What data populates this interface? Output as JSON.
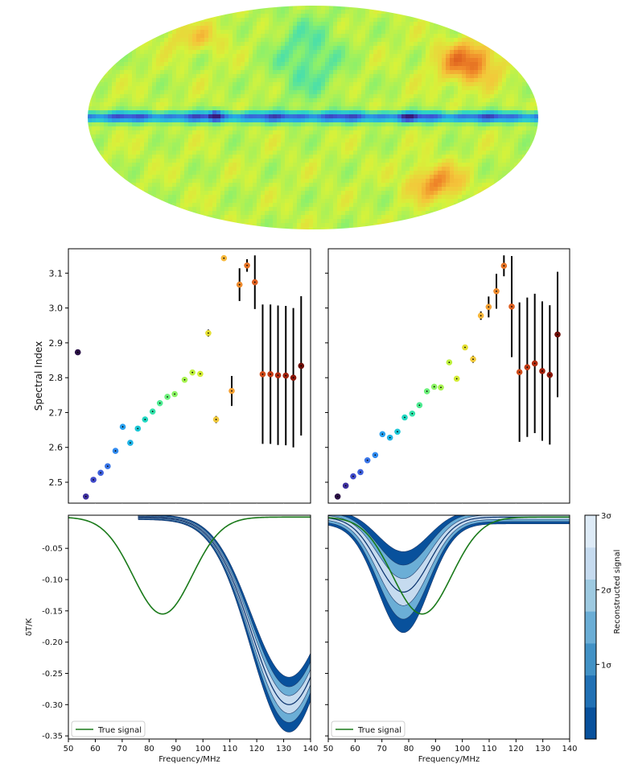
{
  "sky_map": {
    "colormap": [
      "#3a1a7a",
      "#3d55d6",
      "#27a7e6",
      "#2fd8c4",
      "#8df06a",
      "#d7f23a",
      "#f4c63a",
      "#f08a2a",
      "#d44a18",
      "#8a1a0a"
    ]
  },
  "chart_data": [
    {
      "type": "scatter",
      "panel": "spectral-index-left",
      "ylabel": "Spectral Index",
      "xlim": [
        50,
        140
      ],
      "ylim": [
        2.44,
        3.17
      ],
      "yticks": [
        "2.5",
        "2.6",
        "2.7",
        "2.8",
        "2.9",
        "3.0",
        "3.1"
      ],
      "points": [
        {
          "x": 53.5,
          "y": 2.873,
          "err": 0,
          "color": "#2b1247"
        },
        {
          "x": 56.5,
          "y": 2.459,
          "err": 0,
          "color": "#3d2f9e"
        },
        {
          "x": 59.3,
          "y": 2.507,
          "err": 0,
          "color": "#3f49c9"
        },
        {
          "x": 62.0,
          "y": 2.527,
          "err": 0,
          "color": "#3d5fdc"
        },
        {
          "x": 64.6,
          "y": 2.546,
          "err": 0,
          "color": "#3a76e8"
        },
        {
          "x": 67.5,
          "y": 2.59,
          "err": 0,
          "color": "#318bf0"
        },
        {
          "x": 70.2,
          "y": 2.659,
          "err": 0,
          "color": "#28a0ef"
        },
        {
          "x": 73.0,
          "y": 2.613,
          "err": 0,
          "color": "#1fb3e6"
        },
        {
          "x": 75.8,
          "y": 2.654,
          "err": 0,
          "color": "#1cc7d6"
        },
        {
          "x": 78.5,
          "y": 2.68,
          "err": 0,
          "color": "#22d8c2"
        },
        {
          "x": 81.3,
          "y": 2.703,
          "err": 0,
          "color": "#34e3ab"
        },
        {
          "x": 84.0,
          "y": 2.727,
          "err": 0,
          "color": "#4eeb92"
        },
        {
          "x": 86.8,
          "y": 2.745,
          "err": 0,
          "color": "#6cf07a"
        },
        {
          "x": 89.5,
          "y": 2.753,
          "err": 0,
          "color": "#8af264"
        },
        {
          "x": 93.2,
          "y": 2.794,
          "err": 0,
          "color": "#a6f34f"
        },
        {
          "x": 96.1,
          "y": 2.815,
          "err": 0,
          "color": "#bff23f"
        },
        {
          "x": 99.0,
          "y": 2.811,
          "err": 0,
          "color": "#d3ec36"
        },
        {
          "x": 102.0,
          "y": 2.928,
          "err": 0.01,
          "color": "#e3de33"
        },
        {
          "x": 104.9,
          "y": 2.68,
          "err": 0.01,
          "color": "#f0c93a"
        },
        {
          "x": 107.8,
          "y": 3.143,
          "err": 0,
          "color": "#f7b83b"
        },
        {
          "x": 110.7,
          "y": 2.762,
          "err": 0.043,
          "color": "#f4a032"
        },
        {
          "x": 113.6,
          "y": 3.067,
          "err": 0.047,
          "color": "#ee8a2c"
        },
        {
          "x": 116.4,
          "y": 3.122,
          "err": 0.018,
          "color": "#e67326"
        },
        {
          "x": 119.3,
          "y": 3.074,
          "err": 0.077,
          "color": "#dd5f20"
        },
        {
          "x": 122.2,
          "y": 2.81,
          "err": 0.2,
          "color": "#d14c1a"
        },
        {
          "x": 125.1,
          "y": 2.81,
          "err": 0.2,
          "color": "#c23a14"
        },
        {
          "x": 127.9,
          "y": 2.807,
          "err": 0.2,
          "color": "#b22c10"
        },
        {
          "x": 130.8,
          "y": 2.806,
          "err": 0.2,
          "color": "#a0200c"
        },
        {
          "x": 133.6,
          "y": 2.8,
          "err": 0.2,
          "color": "#8c1609"
        },
        {
          "x": 136.5,
          "y": 2.834,
          "err": 0.2,
          "color": "#6e0d06"
        }
      ]
    },
    {
      "type": "scatter",
      "panel": "spectral-index-right",
      "ylabel": "",
      "xlim": [
        50,
        140
      ],
      "ylim": [
        2.44,
        3.17
      ],
      "points": [
        {
          "x": 53.5,
          "y": 2.459,
          "err": 0,
          "color": "#2b1247"
        },
        {
          "x": 56.5,
          "y": 2.49,
          "err": 0,
          "color": "#3d2f9e"
        },
        {
          "x": 59.3,
          "y": 2.517,
          "err": 0,
          "color": "#3f49c9"
        },
        {
          "x": 62.0,
          "y": 2.529,
          "err": 0,
          "color": "#3d5fdc"
        },
        {
          "x": 64.6,
          "y": 2.563,
          "err": 0,
          "color": "#3a76e8"
        },
        {
          "x": 67.5,
          "y": 2.578,
          "err": 0,
          "color": "#318bf0"
        },
        {
          "x": 70.2,
          "y": 2.638,
          "err": 0,
          "color": "#28a0ef"
        },
        {
          "x": 73.0,
          "y": 2.628,
          "err": 0,
          "color": "#1fb3e6"
        },
        {
          "x": 75.8,
          "y": 2.645,
          "err": 0,
          "color": "#1cc7d6"
        },
        {
          "x": 78.5,
          "y": 2.686,
          "err": 0,
          "color": "#22d8c2"
        },
        {
          "x": 81.3,
          "y": 2.697,
          "err": 0,
          "color": "#34e3ab"
        },
        {
          "x": 84.0,
          "y": 2.721,
          "err": 0,
          "color": "#4eeb92"
        },
        {
          "x": 86.8,
          "y": 2.761,
          "err": 0,
          "color": "#6cf07a"
        },
        {
          "x": 89.5,
          "y": 2.774,
          "err": 0,
          "color": "#8af264"
        },
        {
          "x": 92.0,
          "y": 2.772,
          "err": 0,
          "color": "#a6f34f"
        },
        {
          "x": 95.1,
          "y": 2.844,
          "err": 0,
          "color": "#bff23f"
        },
        {
          "x": 97.9,
          "y": 2.797,
          "err": 0,
          "color": "#d3ec36"
        },
        {
          "x": 101.0,
          "y": 2.887,
          "err": 0,
          "color": "#e3de33"
        },
        {
          "x": 104.0,
          "y": 2.853,
          "err": 0.01,
          "color": "#f0c93a"
        },
        {
          "x": 106.9,
          "y": 2.978,
          "err": 0.012,
          "color": "#f7b83b"
        },
        {
          "x": 109.8,
          "y": 3.003,
          "err": 0.03,
          "color": "#f4a032"
        },
        {
          "x": 112.7,
          "y": 3.048,
          "err": 0.05,
          "color": "#ee8a2c"
        },
        {
          "x": 115.5,
          "y": 3.121,
          "err": 0.03,
          "color": "#e67326"
        },
        {
          "x": 118.4,
          "y": 3.004,
          "err": 0.145,
          "color": "#dd5f20"
        },
        {
          "x": 121.3,
          "y": 2.816,
          "err": 0.2,
          "color": "#d14c1a"
        },
        {
          "x": 124.2,
          "y": 2.83,
          "err": 0.2,
          "color": "#c23a14"
        },
        {
          "x": 127.0,
          "y": 2.841,
          "err": 0.2,
          "color": "#b22c10"
        },
        {
          "x": 129.8,
          "y": 2.819,
          "err": 0.2,
          "color": "#a0200c"
        },
        {
          "x": 132.6,
          "y": 2.808,
          "err": 0.2,
          "color": "#8c1609"
        },
        {
          "x": 135.5,
          "y": 2.924,
          "err": 0.18,
          "color": "#6e0d06"
        }
      ]
    },
    {
      "type": "area",
      "panel": "signal-left",
      "xlabel": "Frequency/MHz",
      "ylabel": "δT/K",
      "xlim": [
        50,
        140
      ],
      "ylim": [
        -0.355,
        0.003
      ],
      "xticks": [
        "50",
        "60",
        "70",
        "80",
        "90",
        "100",
        "110",
        "120",
        "130",
        "140"
      ],
      "yticks": [
        "-0.35",
        "-0.30",
        "-0.25",
        "-0.20",
        "-0.15",
        "-0.10",
        "-0.05"
      ],
      "true_signal": {
        "label": "True signal",
        "amplitude": -0.155,
        "center": 85,
        "width": 15.5,
        "color": "#1a7a1a"
      },
      "reconstruction": {
        "amplitude": -0.3,
        "center": 132,
        "width": 20,
        "xstart": 76,
        "sigma_widths": [
          0.013,
          0.026,
          0.04
        ],
        "sigma_scale": 0.1
      }
    },
    {
      "type": "area",
      "panel": "signal-right",
      "xlabel": "Frequency/MHz",
      "ylabel": "",
      "xlim": [
        50,
        140
      ],
      "ylim": [
        -0.355,
        0.003
      ],
      "xticks": [
        "50",
        "60",
        "70",
        "80",
        "90",
        "100",
        "110",
        "120",
        "130",
        "140"
      ],
      "true_signal": {
        "label": "True signal",
        "amplitude": -0.155,
        "center": 85,
        "width": 15.5,
        "color": "#1a7a1a"
      },
      "reconstruction": {
        "amplitude": -0.12,
        "center": 78,
        "width": 13.5,
        "xstart": 50,
        "sigma_widths": [
          0.018,
          0.036,
          0.054
        ],
        "sigma_scale": 0.2
      }
    }
  ],
  "colorbar": {
    "label": "Reconstructed signal",
    "ticks": [
      "1σ",
      "2σ",
      "3σ"
    ],
    "levels": [
      "#08519c",
      "#2171b5",
      "#4292c6",
      "#6baed6",
      "#9ecae1",
      "#c6dbef",
      "#deebf7"
    ]
  }
}
